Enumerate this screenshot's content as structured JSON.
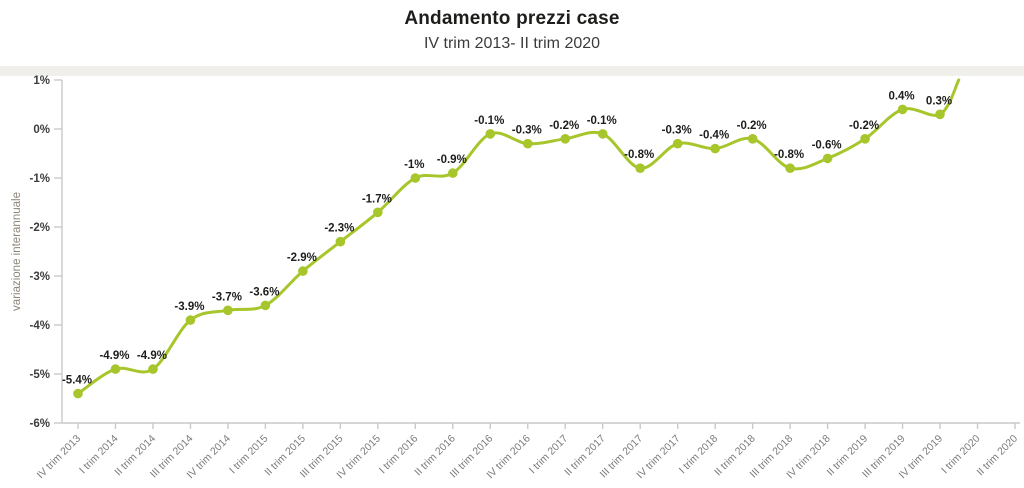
{
  "header": {
    "title": "Andamento prezzi case",
    "subtitle": "IV trim 2013- II trim 2020"
  },
  "chart_data": {
    "type": "line",
    "title": "Andamento prezzi case",
    "subtitle": "IV trim 2013- II trim 2020",
    "ylabel": "variazione interannuale",
    "ylim": [
      -6,
      1
    ],
    "ytick_values": [
      1,
      0,
      -1,
      -2,
      -3,
      -4,
      -5,
      -6
    ],
    "ytick_labels": [
      "1%",
      "0%",
      "-1%",
      "-2%",
      "-3%",
      "-4%",
      "-5%",
      "-6%"
    ],
    "grid": "off",
    "legend": "none",
    "categories": [
      "IV trim 2013",
      "I trim 2014",
      "II trim 2014",
      "III trim 2014",
      "IV trim 2014",
      "I trim 2015",
      "II trim 2015",
      "III trim 2015",
      "IV trim 2015",
      "I trim 2016",
      "II trim 2016",
      "III trim 2016",
      "IV trim 2016",
      "I trim 2017",
      "II trim 2017",
      "III trim 2017",
      "IV trim 2017",
      "I trim 2018",
      "II trim 2018",
      "III trim 2018",
      "IV trim 2018",
      "II trim 2019",
      "III trim 2019",
      "IV trim 2019",
      "I trim 2020",
      "II trim 2020"
    ],
    "series": [
      {
        "name": "variazione interannuale",
        "values": [
          -5.4,
          -4.9,
          -4.9,
          -3.9,
          -3.7,
          -3.6,
          -2.9,
          -2.3,
          -1.7,
          -1,
          -0.9,
          -0.1,
          -0.3,
          -0.2,
          -0.1,
          -0.8,
          -0.3,
          -0.4,
          -0.2,
          -0.8,
          -0.6,
          -0.2,
          0.4,
          0.3,
          null,
          null
        ],
        "point_labels": [
          "-5.4%",
          "-4.9%",
          "-4.9%",
          "-3.9%",
          "-3.7%",
          "-3.6%",
          "-2.9%",
          "-2.3%",
          "-1.7%",
          "-1%",
          "-0.9%",
          "-0.1%",
          "-0.3%",
          "-0.2%",
          "-0.1%",
          "-0.8%",
          "-0.3%",
          "-0.4%",
          "-0.2%",
          "-0.8%",
          "-0.6%",
          "-0.2%",
          "0.4%",
          "0.3%"
        ]
      }
    ],
    "final_segment": {
      "clipped": true,
      "rises_to_percent": 1,
      "toward_category": "I trim 2020"
    },
    "colors": {
      "line": "#a6c62b",
      "marker": "#a6c62b",
      "point_label": "#1d1d1b",
      "axis": "#c9c9c9",
      "xtick_label": "#7c7c7c",
      "ytick_label": "#3c3c3c",
      "yaxis_title": "#8d8478",
      "divider_band": "#f0efec"
    }
  }
}
